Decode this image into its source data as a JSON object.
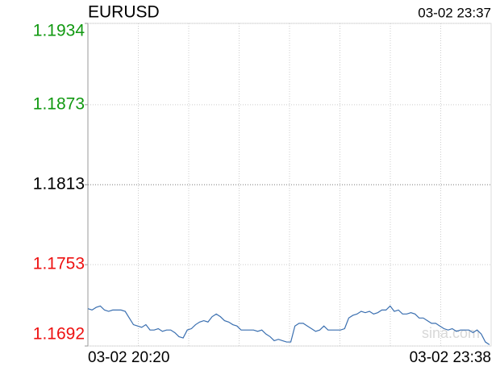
{
  "chart_data": {
    "type": "line",
    "title": "EURUSD",
    "timestamp": "03-02 23:37",
    "watermark": "sina.com",
    "x": [
      "03-02 20:20",
      null,
      null,
      null,
      null,
      null,
      null,
      null,
      null,
      null,
      null,
      null,
      null,
      null,
      null,
      null,
      null,
      null,
      null,
      null,
      null,
      null,
      null,
      null,
      null,
      null,
      null,
      null,
      null,
      null,
      null,
      null,
      null,
      null,
      null,
      null,
      null,
      null,
      null,
      null,
      null,
      null,
      null,
      null,
      null,
      null,
      null,
      null,
      null,
      null,
      null,
      null,
      null,
      null,
      null,
      null,
      null,
      null,
      null,
      null,
      null,
      null,
      null,
      null,
      null,
      null,
      null,
      null,
      null,
      null,
      null,
      null,
      null,
      null,
      null,
      null,
      null,
      null,
      null,
      null,
      null,
      null,
      null,
      null,
      null,
      null,
      null,
      null,
      null,
      null,
      null,
      null,
      null,
      null,
      null,
      null,
      null,
      "03-02 23:38"
    ],
    "values": [
      1.172,
      1.1719,
      1.1721,
      1.1722,
      1.1719,
      1.1718,
      1.1719,
      1.1719,
      1.1719,
      1.1718,
      1.1713,
      1.1708,
      1.1707,
      1.1706,
      1.1708,
      1.1704,
      1.1704,
      1.1705,
      1.1703,
      1.1704,
      1.1704,
      1.1702,
      1.1699,
      1.1698,
      1.1704,
      1.1705,
      1.1708,
      1.171,
      1.1711,
      1.171,
      1.1714,
      1.1716,
      1.1714,
      1.1711,
      1.171,
      1.1708,
      1.1707,
      1.1704,
      1.1704,
      1.1704,
      1.1704,
      1.1703,
      1.1704,
      1.1701,
      1.1699,
      1.1696,
      1.1697,
      1.1696,
      1.1695,
      1.1695,
      1.1707,
      1.1709,
      1.1709,
      1.1707,
      1.1705,
      1.1703,
      1.1704,
      1.1707,
      1.1704,
      1.1704,
      1.1704,
      1.1704,
      1.1705,
      1.1713,
      1.1715,
      1.1716,
      1.1718,
      1.1717,
      1.1718,
      1.1716,
      1.1717,
      1.1719,
      1.1719,
      1.1722,
      1.1718,
      1.1719,
      1.1716,
      1.1716,
      1.1717,
      1.1716,
      1.1713,
      1.1713,
      1.1711,
      1.1709,
      1.1709,
      1.1707,
      1.1705,
      1.1704,
      1.1705,
      1.1703,
      1.1704,
      1.1704,
      1.1704,
      1.1702,
      1.1704,
      1.1701,
      1.1695,
      1.1693
    ],
    "color": "#3a6fb0",
    "ylim": [
      1.1692,
      1.1934
    ],
    "yticks": [
      1.1934,
      1.1873,
      1.1813,
      1.1753,
      1.1692
    ],
    "ytick_colors": [
      "#119911",
      "#119911",
      "#000000",
      "#ee1111",
      "#ee1111"
    ],
    "grid": true
  }
}
